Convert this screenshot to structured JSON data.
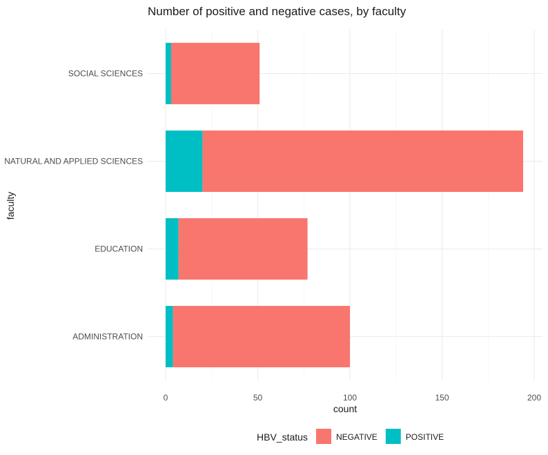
{
  "chart_data": {
    "type": "bar",
    "orientation": "horizontal",
    "stacked": true,
    "title": "Number of positive and negative cases, by faculty",
    "xlabel": "count",
    "ylabel": "faculty",
    "categories": [
      "ADMINISTRATION",
      "EDUCATION",
      "NATURAL AND APPLIED SCIENCES",
      "SOCIAL SCIENCES"
    ],
    "series": [
      {
        "name": "POSITIVE",
        "color": "#00BFC4",
        "values": [
          4,
          7,
          20,
          3
        ]
      },
      {
        "name": "NEGATIVE",
        "color": "#F8766D",
        "values": [
          96,
          70,
          174,
          48
        ]
      }
    ],
    "xlim": [
      0,
      205
    ],
    "xticks": [
      0,
      50,
      100,
      150,
      200
    ],
    "grid": true,
    "legend": {
      "title": "HBV_status",
      "position": "bottom",
      "entries": [
        {
          "label": "NEGATIVE",
          "color": "#F8766D"
        },
        {
          "label": "POSITIVE",
          "color": "#00BFC4"
        }
      ]
    }
  }
}
